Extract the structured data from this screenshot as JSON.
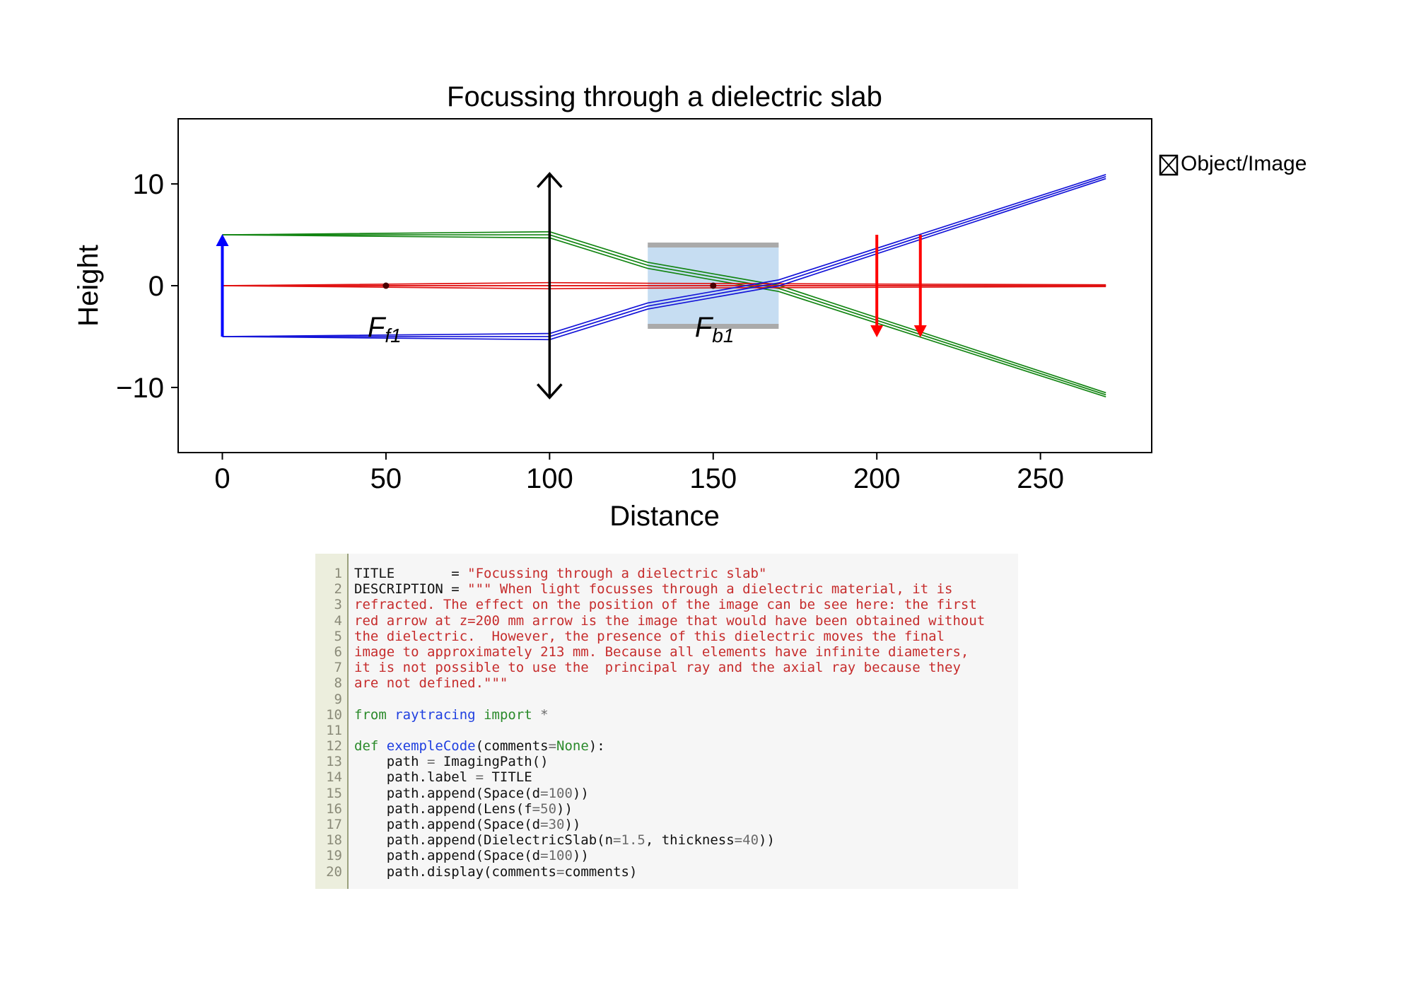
{
  "chart_data": {
    "type": "line",
    "title": "Focussing through a dielectric slab",
    "xlabel": "Distance",
    "ylabel": "Height",
    "xlim": [
      -13.5,
      284
    ],
    "ylim": [
      -16.4,
      16.4
    ],
    "xticks": [
      0,
      50,
      100,
      150,
      200,
      250
    ],
    "xtick_labels": [
      "0",
      "50",
      "100",
      "150",
      "200",
      "250"
    ],
    "yticks": [
      10,
      0,
      -10
    ],
    "ytick_labels": [
      "10",
      "0",
      "−10"
    ],
    "grid": false,
    "legend": {
      "placement": "outside-right-top",
      "entries": [
        "Object/Image"
      ]
    },
    "colors": {
      "green_rays": "#138513",
      "red_rays": "#e01010",
      "blue_rays": "#1414d8",
      "object_arrow": "#0000ff",
      "image_arrow": "#ff0000",
      "lens": "#000000",
      "slab_fill": "#c6ddf2",
      "slab_edge": "#aaaaaa",
      "focal_point": "#4a0000"
    },
    "optical_axis": {
      "x": [
        0,
        270
      ],
      "y": 0
    },
    "object": {
      "x": 0,
      "y_from": -5,
      "y_to": 5
    },
    "lens": {
      "x": 100,
      "y_from": -11,
      "y_to": 11
    },
    "slab": {
      "x_from": 130,
      "x_to": 170,
      "y_from": -4,
      "y_to": 4
    },
    "images": [
      {
        "x": 200,
        "y_from": 5,
        "y_to": -5
      },
      {
        "x": 213.3,
        "y_from": 5,
        "y_to": -5
      }
    ],
    "focal_points": [
      {
        "x": 50,
        "y": 0,
        "label": "F",
        "sub": "f1"
      },
      {
        "x": 150,
        "y": 0,
        "label": "F",
        "sub": "b1"
      }
    ],
    "ray_x": [
      0,
      100,
      100,
      130,
      170,
      270
    ],
    "series": [
      {
        "color": "green",
        "values": [
          5,
          5.3,
          5.3,
          2.3,
          0.03,
          -10.52
        ]
      },
      {
        "color": "green",
        "values": [
          5,
          5.0,
          5.0,
          2.0,
          -0.27,
          -10.72
        ]
      },
      {
        "color": "green",
        "values": [
          5,
          4.7,
          4.7,
          1.7,
          -0.57,
          -10.92
        ]
      },
      {
        "color": "red",
        "values": [
          0,
          0.3,
          0.3,
          0.24,
          0.19,
          0.09
        ]
      },
      {
        "color": "red",
        "values": [
          0,
          0.0,
          0.0,
          0.0,
          0.0,
          0.0
        ]
      },
      {
        "color": "red",
        "values": [
          0,
          -0.3,
          -0.3,
          -0.24,
          -0.19,
          -0.09
        ]
      },
      {
        "color": "blue",
        "values": [
          -5,
          -4.7,
          -4.7,
          -1.7,
          0.57,
          10.92
        ]
      },
      {
        "color": "blue",
        "values": [
          -5,
          -5.0,
          -5.0,
          -2.0,
          0.27,
          10.72
        ]
      },
      {
        "color": "blue",
        "values": [
          -5,
          -5.3,
          -5.3,
          -2.3,
          -0.03,
          10.52
        ]
      }
    ]
  },
  "code": {
    "line_numbers": [
      "1",
      "2",
      "3",
      "4",
      "5",
      "6",
      "7",
      "8",
      "9",
      "10",
      "11",
      "12",
      "13",
      "14",
      "15",
      "16",
      "17",
      "18",
      "19",
      "20"
    ],
    "lines": [
      [
        [
          "TITLE       = ",
          ""
        ],
        [
          "\"Focussing through a dielectric slab\"",
          "str"
        ]
      ],
      [
        [
          "DESCRIPTION = ",
          ""
        ],
        [
          "\"\"\" When light focusses through a dielectric material, it is",
          "str"
        ]
      ],
      [
        [
          "refracted. The effect on the position of the image can be see here: the first",
          "str"
        ]
      ],
      [
        [
          "red arrow at z=200 mm arrow is the image that would have been obtained without",
          "str"
        ]
      ],
      [
        [
          "the dielectric.  However, the presence of this dielectric moves the final",
          "str"
        ]
      ],
      [
        [
          "image to approximately 213 mm. Because all elements have infinite diameters,",
          "str"
        ]
      ],
      [
        [
          "it is not possible to use the  principal ray and the axial ray because they",
          "str"
        ]
      ],
      [
        [
          "are not defined.\"\"\"",
          "str"
        ]
      ],
      [],
      [
        [
          "from",
          "kw"
        ],
        [
          " ",
          ""
        ],
        [
          "raytracing",
          "name"
        ],
        [
          " ",
          ""
        ],
        [
          "import",
          "kw"
        ],
        [
          " ",
          ""
        ],
        [
          "*",
          "op"
        ]
      ],
      [],
      [
        [
          "def",
          "kw"
        ],
        [
          " ",
          ""
        ],
        [
          "exempleCode",
          "name"
        ],
        [
          "(comments",
          ""
        ],
        [
          "=",
          "op"
        ],
        [
          "None",
          "kw"
        ],
        [
          "):",
          ""
        ]
      ],
      [
        [
          "    path ",
          ""
        ],
        [
          "=",
          "op"
        ],
        [
          " ImagingPath()",
          ""
        ]
      ],
      [
        [
          "    path.label ",
          ""
        ],
        [
          "=",
          "op"
        ],
        [
          " TITLE",
          ""
        ]
      ],
      [
        [
          "    path.append(Space(d",
          ""
        ],
        [
          "=",
          "op"
        ],
        [
          "100",
          "num"
        ],
        [
          "))",
          ""
        ]
      ],
      [
        [
          "    path.append(Lens(f",
          ""
        ],
        [
          "=",
          "op"
        ],
        [
          "50",
          "num"
        ],
        [
          "))",
          ""
        ]
      ],
      [
        [
          "    path.append(Space(d",
          ""
        ],
        [
          "=",
          "op"
        ],
        [
          "30",
          "num"
        ],
        [
          "))",
          ""
        ]
      ],
      [
        [
          "    path.append(DielectricSlab(n",
          ""
        ],
        [
          "=",
          "op"
        ],
        [
          "1.5",
          "num"
        ],
        [
          ", thickness",
          ""
        ],
        [
          "=",
          "op"
        ],
        [
          "40",
          "num"
        ],
        [
          "))",
          ""
        ]
      ],
      [
        [
          "    path.append(Space(d",
          ""
        ],
        [
          "=",
          "op"
        ],
        [
          "100",
          "num"
        ],
        [
          "))",
          ""
        ]
      ],
      [
        [
          "    path.display(comments",
          ""
        ],
        [
          "=",
          "op"
        ],
        [
          "comments)",
          ""
        ]
      ]
    ]
  }
}
